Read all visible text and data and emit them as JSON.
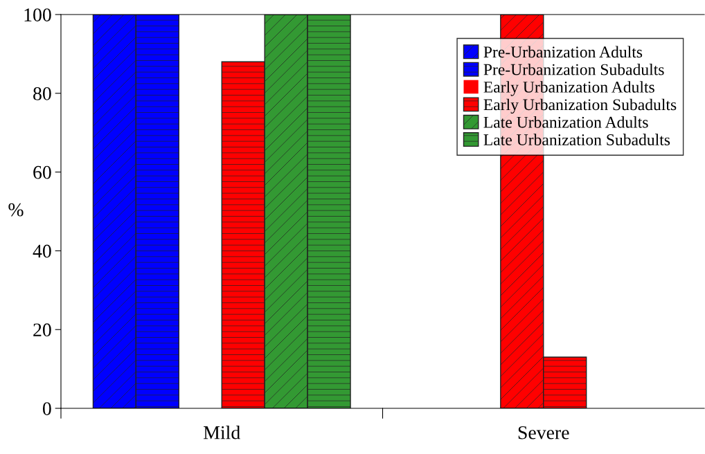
{
  "chart_data": {
    "type": "bar",
    "ylabel": "%",
    "categories": [
      "Mild",
      "Severe"
    ],
    "series": [
      {
        "name": "Pre-Urbanization Adults",
        "color": "#0000ff",
        "values": [
          100,
          0
        ]
      },
      {
        "name": "Pre-Urbanization Subadults",
        "color": "#0000ff",
        "values": [
          100,
          0
        ]
      },
      {
        "name": "Early Urbanization Adults",
        "color": "#ff0000",
        "values": [
          0,
          100
        ]
      },
      {
        "name": "Early Urbanization Subadults",
        "color": "#ff0000",
        "values": [
          88,
          13
        ]
      },
      {
        "name": "Late Urbanization Adults",
        "color": "#339933",
        "values": [
          100,
          0
        ]
      },
      {
        "name": "Late Urbanization Subadults",
        "color": "#339933",
        "values": [
          100,
          0
        ]
      }
    ],
    "ylim": [
      0,
      100
    ],
    "yticks": [
      0,
      20,
      40,
      60,
      80,
      100
    ],
    "grid": false,
    "legend": "top right"
  }
}
